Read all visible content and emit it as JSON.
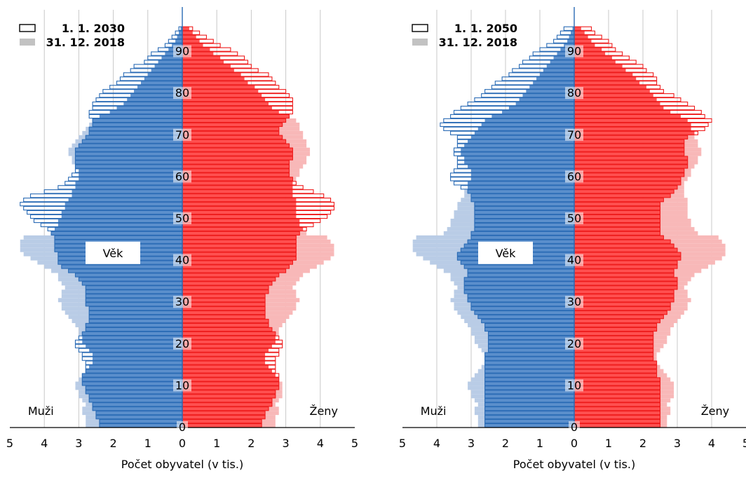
{
  "chart_data": [
    {
      "type": "bar",
      "orientation": "horizontal-pyramid",
      "xlabel": "Počet obyvatel (v tis.)",
      "xticks": [
        "5",
        "4",
        "3",
        "2",
        "1",
        "0",
        "1",
        "2",
        "3",
        "4",
        "5"
      ],
      "xlim": [
        -5,
        5
      ],
      "ylim": [
        0,
        100
      ],
      "yticks": [
        "0",
        "10",
        "20",
        "30",
        "40",
        "50",
        "60",
        "70",
        "80",
        "90"
      ],
      "age_label": "Věk",
      "left_label": "Muži",
      "right_label": "Ženy",
      "legend_position": "top-left",
      "legend": [
        {
          "name": "1. 1. 2030",
          "style": "outline"
        },
        {
          "name": "31. 12. 2018",
          "style": "filled-gray"
        }
      ],
      "colors": {
        "male_outline": "#2a6bb5",
        "female_outline": "#ee1c1c",
        "male_fill_projection": "#5b8fcc",
        "female_fill_projection": "#ff5050",
        "male_2018": "#b9cce6",
        "female_2018": "#f8b8b8",
        "grid": "#c8c8c8"
      },
      "ages": [
        0,
        1,
        2,
        3,
        4,
        5,
        6,
        7,
        8,
        9,
        10,
        11,
        12,
        13,
        14,
        15,
        16,
        17,
        18,
        19,
        20,
        21,
        22,
        23,
        24,
        25,
        26,
        27,
        28,
        29,
        30,
        31,
        32,
        33,
        34,
        35,
        36,
        37,
        38,
        39,
        40,
        41,
        42,
        43,
        44,
        45,
        46,
        47,
        48,
        49,
        50,
        51,
        52,
        53,
        54,
        55,
        56,
        57,
        58,
        59,
        60,
        61,
        62,
        63,
        64,
        65,
        66,
        67,
        68,
        69,
        70,
        71,
        72,
        73,
        74,
        75,
        76,
        77,
        78,
        79,
        80,
        81,
        82,
        83,
        84,
        85,
        86,
        87,
        88,
        89,
        90,
        91,
        92,
        93,
        94,
        95
      ],
      "series": [
        {
          "name": "1. 1. 2030",
          "group": "Muži",
          "values": [
            2.4,
            2.4,
            2.5,
            2.5,
            2.6,
            2.6,
            2.7,
            2.7,
            2.8,
            2.8,
            2.9,
            2.9,
            2.9,
            2.8,
            2.8,
            2.8,
            2.9,
            2.9,
            3.0,
            3.1,
            3.1,
            3.0,
            2.9,
            2.8,
            2.8,
            2.7,
            2.7,
            2.7,
            2.7,
            2.8,
            2.8,
            2.8,
            2.8,
            2.8,
            2.9,
            3.0,
            3.1,
            3.3,
            3.5,
            3.6,
            3.6,
            3.6,
            3.7,
            3.7,
            3.7,
            3.7,
            3.8,
            3.9,
            4.1,
            4.3,
            4.4,
            4.5,
            4.6,
            4.7,
            4.6,
            4.4,
            4.0,
            3.6,
            3.4,
            3.3,
            3.2,
            3.1,
            3.1,
            3.1,
            3.1,
            3.1,
            3.1,
            3.0,
            2.9,
            2.8,
            2.7,
            2.7,
            2.6,
            2.6,
            2.7,
            2.7,
            2.6,
            2.6,
            2.5,
            2.4,
            2.3,
            2.1,
            1.9,
            1.8,
            1.7,
            1.5,
            1.4,
            1.1,
            1.0,
            0.9,
            0.7,
            0.5,
            0.4,
            0.3,
            0.2,
            0.1
          ]
        },
        {
          "name": "31. 12. 2018",
          "group": "Muži",
          "values": [
            2.8,
            2.8,
            2.8,
            2.9,
            2.9,
            2.8,
            2.9,
            3.0,
            3.0,
            3.1,
            3.1,
            3.0,
            2.9,
            2.8,
            2.7,
            2.6,
            2.6,
            2.6,
            2.7,
            2.8,
            2.9,
            2.9,
            3.0,
            3.0,
            3.1,
            3.2,
            3.3,
            3.4,
            3.5,
            3.5,
            3.6,
            3.5,
            3.5,
            3.4,
            3.5,
            3.6,
            3.6,
            3.8,
            4.0,
            4.2,
            4.4,
            4.6,
            4.7,
            4.7,
            4.7,
            4.6,
            3.8,
            3.7,
            3.6,
            3.6,
            3.5,
            3.5,
            3.4,
            3.4,
            3.3,
            3.2,
            3.2,
            3.1,
            3.1,
            3.0,
            3.0,
            3.0,
            3.1,
            3.2,
            3.2,
            3.3,
            3.3,
            3.2,
            3.1,
            3.0,
            2.9,
            2.8,
            2.7,
            2.6,
            2.4,
            2.1,
            1.9,
            1.7,
            1.6,
            1.5,
            1.4,
            1.3,
            1.2,
            1.1,
            1.0,
            0.9,
            0.8,
            0.7,
            0.6,
            0.5,
            0.4,
            0.3,
            0.2,
            0.15,
            0.1,
            0.05
          ]
        },
        {
          "name": "1. 1. 2030",
          "group": "Ženy",
          "values": [
            2.3,
            2.3,
            2.4,
            2.4,
            2.5,
            2.6,
            2.6,
            2.7,
            2.7,
            2.8,
            2.8,
            2.8,
            2.8,
            2.7,
            2.7,
            2.7,
            2.7,
            2.8,
            2.8,
            2.9,
            2.9,
            2.8,
            2.7,
            2.6,
            2.5,
            2.5,
            2.4,
            2.4,
            2.4,
            2.4,
            2.4,
            2.4,
            2.5,
            2.5,
            2.6,
            2.7,
            2.8,
            3.0,
            3.1,
            3.2,
            3.3,
            3.3,
            3.3,
            3.3,
            3.3,
            3.3,
            3.4,
            3.6,
            3.8,
            4.0,
            4.2,
            4.3,
            4.4,
            4.4,
            4.3,
            4.1,
            3.8,
            3.5,
            3.3,
            3.2,
            3.1,
            3.1,
            3.1,
            3.1,
            3.2,
            3.2,
            3.2,
            3.1,
            3.0,
            2.9,
            2.8,
            2.8,
            2.9,
            3.0,
            3.1,
            3.2,
            3.2,
            3.2,
            3.2,
            3.1,
            3.0,
            2.8,
            2.7,
            2.6,
            2.5,
            2.2,
            2.0,
            1.9,
            1.8,
            1.6,
            1.4,
            1.1,
            0.9,
            0.7,
            0.5,
            0.3
          ]
        },
        {
          "name": "31. 12. 2018",
          "group": "Ženy",
          "values": [
            2.7,
            2.7,
            2.7,
            2.8,
            2.8,
            2.7,
            2.8,
            2.9,
            2.9,
            2.9,
            2.9,
            2.8,
            2.7,
            2.6,
            2.5,
            2.4,
            2.4,
            2.4,
            2.5,
            2.6,
            2.7,
            2.7,
            2.8,
            2.8,
            2.9,
            3.0,
            3.1,
            3.2,
            3.3,
            3.3,
            3.4,
            3.3,
            3.3,
            3.2,
            3.3,
            3.4,
            3.5,
            3.7,
            3.9,
            4.1,
            4.3,
            4.4,
            4.4,
            4.4,
            4.3,
            4.2,
            3.6,
            3.5,
            3.4,
            3.4,
            3.3,
            3.3,
            3.3,
            3.3,
            3.3,
            3.2,
            3.2,
            3.2,
            3.2,
            3.3,
            3.4,
            3.4,
            3.5,
            3.6,
            3.6,
            3.7,
            3.7,
            3.6,
            3.6,
            3.5,
            3.5,
            3.4,
            3.4,
            3.3,
            3.1,
            2.8,
            2.6,
            2.5,
            2.4,
            2.3,
            2.2,
            2.1,
            1.9,
            1.8,
            1.7,
            1.5,
            1.4,
            1.2,
            1.1,
            0.9,
            0.8,
            0.6,
            0.5,
            0.4,
            0.3,
            0.2
          ]
        }
      ]
    },
    {
      "type": "bar",
      "orientation": "horizontal-pyramid",
      "xlabel": "Počet obyvatel (v tis.)",
      "xticks": [
        "5",
        "4",
        "3",
        "2",
        "1",
        "0",
        "1",
        "2",
        "3",
        "4",
        "5"
      ],
      "xlim": [
        -5,
        5
      ],
      "ylim": [
        0,
        100
      ],
      "yticks": [
        "0",
        "10",
        "20",
        "30",
        "40",
        "50",
        "60",
        "70",
        "80",
        "90"
      ],
      "age_label": "Věk",
      "left_label": "Muži",
      "right_label": "Ženy",
      "legend_position": "top-left",
      "legend": [
        {
          "name": "1. 1. 2050",
          "style": "outline"
        },
        {
          "name": "31. 12. 2018",
          "style": "filled-gray"
        }
      ],
      "colors": {
        "male_outline": "#2a6bb5",
        "female_outline": "#ee1c1c",
        "male_fill_projection": "#5b8fcc",
        "female_fill_projection": "#ff5050",
        "male_2018": "#b9cce6",
        "female_2018": "#f8b8b8",
        "grid": "#c8c8c8"
      },
      "ages": [
        0,
        1,
        2,
        3,
        4,
        5,
        6,
        7,
        8,
        9,
        10,
        11,
        12,
        13,
        14,
        15,
        16,
        17,
        18,
        19,
        20,
        21,
        22,
        23,
        24,
        25,
        26,
        27,
        28,
        29,
        30,
        31,
        32,
        33,
        34,
        35,
        36,
        37,
        38,
        39,
        40,
        41,
        42,
        43,
        44,
        45,
        46,
        47,
        48,
        49,
        50,
        51,
        52,
        53,
        54,
        55,
        56,
        57,
        58,
        59,
        60,
        61,
        62,
        63,
        64,
        65,
        66,
        67,
        68,
        69,
        70,
        71,
        72,
        73,
        74,
        75,
        76,
        77,
        78,
        79,
        80,
        81,
        82,
        83,
        84,
        85,
        86,
        87,
        88,
        89,
        90,
        91,
        92,
        93,
        94,
        95
      ],
      "series": [
        {
          "name": "1. 1. 2050",
          "group": "Muži",
          "values": [
            2.6,
            2.6,
            2.6,
            2.6,
            2.6,
            2.6,
            2.6,
            2.6,
            2.6,
            2.6,
            2.6,
            2.6,
            2.6,
            2.6,
            2.6,
            2.6,
            2.6,
            2.6,
            2.5,
            2.5,
            2.5,
            2.5,
            2.5,
            2.6,
            2.6,
            2.7,
            2.8,
            2.9,
            3.0,
            3.0,
            3.1,
            3.1,
            3.2,
            3.2,
            3.2,
            3.2,
            3.1,
            3.1,
            3.2,
            3.3,
            3.4,
            3.4,
            3.3,
            3.2,
            3.1,
            3.0,
            3.0,
            2.9,
            2.9,
            2.9,
            2.9,
            2.9,
            2.9,
            2.9,
            3.0,
            3.0,
            3.1,
            3.3,
            3.5,
            3.6,
            3.6,
            3.5,
            3.4,
            3.4,
            3.4,
            3.5,
            3.5,
            3.4,
            3.4,
            3.4,
            3.6,
            3.8,
            3.9,
            3.8,
            3.6,
            3.5,
            3.3,
            3.1,
            2.9,
            2.7,
            2.6,
            2.4,
            2.3,
            2.1,
            1.9,
            1.8,
            1.6,
            1.5,
            1.3,
            1.2,
            1.0,
            0.8,
            0.6,
            0.5,
            0.4,
            0.3
          ]
        },
        {
          "name": "31. 12. 2018",
          "group": "Muži",
          "values": [
            2.8,
            2.8,
            2.8,
            2.9,
            2.9,
            2.8,
            2.9,
            3.0,
            3.0,
            3.1,
            3.1,
            3.0,
            2.9,
            2.8,
            2.7,
            2.6,
            2.6,
            2.6,
            2.7,
            2.8,
            2.9,
            2.9,
            3.0,
            3.0,
            3.1,
            3.2,
            3.3,
            3.4,
            3.5,
            3.5,
            3.6,
            3.5,
            3.5,
            3.4,
            3.5,
            3.6,
            3.6,
            3.8,
            4.0,
            4.2,
            4.4,
            4.6,
            4.7,
            4.7,
            4.7,
            4.6,
            3.8,
            3.7,
            3.6,
            3.6,
            3.5,
            3.5,
            3.4,
            3.4,
            3.3,
            3.2,
            3.2,
            3.1,
            3.1,
            3.0,
            3.0,
            3.0,
            3.1,
            3.2,
            3.2,
            3.3,
            3.3,
            3.2,
            3.1,
            3.0,
            2.9,
            2.8,
            2.7,
            2.6,
            2.4,
            2.1,
            1.9,
            1.7,
            1.6,
            1.5,
            1.4,
            1.3,
            1.2,
            1.1,
            1.0,
            0.9,
            0.8,
            0.7,
            0.6,
            0.5,
            0.4,
            0.3,
            0.2,
            0.15,
            0.1,
            0.05
          ]
        },
        {
          "name": "1. 1. 2050",
          "group": "Ženy",
          "values": [
            2.5,
            2.5,
            2.5,
            2.5,
            2.5,
            2.5,
            2.5,
            2.5,
            2.5,
            2.5,
            2.5,
            2.5,
            2.4,
            2.4,
            2.4,
            2.4,
            2.3,
            2.3,
            2.3,
            2.3,
            2.3,
            2.3,
            2.3,
            2.4,
            2.4,
            2.5,
            2.6,
            2.7,
            2.8,
            2.8,
            2.9,
            2.9,
            2.9,
            3.0,
            3.0,
            3.0,
            2.9,
            2.9,
            3.0,
            3.0,
            3.1,
            3.1,
            3.0,
            2.9,
            2.8,
            2.6,
            2.5,
            2.5,
            2.5,
            2.5,
            2.5,
            2.5,
            2.5,
            2.5,
            2.6,
            2.8,
            2.9,
            3.0,
            3.1,
            3.1,
            3.2,
            3.2,
            3.3,
            3.3,
            3.3,
            3.2,
            3.2,
            3.2,
            3.2,
            3.3,
            3.6,
            3.8,
            3.9,
            4.0,
            3.8,
            3.7,
            3.5,
            3.3,
            3.1,
            2.9,
            2.6,
            2.5,
            2.4,
            2.4,
            2.3,
            2.1,
            2.0,
            1.8,
            1.6,
            1.4,
            1.2,
            1.1,
            1.0,
            0.8,
            0.6,
            0.5
          ]
        },
        {
          "name": "31. 12. 2018",
          "group": "Ženy",
          "values": [
            2.7,
            2.7,
            2.7,
            2.8,
            2.8,
            2.7,
            2.8,
            2.9,
            2.9,
            2.9,
            2.9,
            2.8,
            2.7,
            2.6,
            2.5,
            2.4,
            2.4,
            2.4,
            2.5,
            2.6,
            2.7,
            2.7,
            2.8,
            2.8,
            2.9,
            3.0,
            3.1,
            3.2,
            3.3,
            3.3,
            3.4,
            3.3,
            3.3,
            3.2,
            3.3,
            3.4,
            3.5,
            3.7,
            3.9,
            4.1,
            4.3,
            4.4,
            4.4,
            4.4,
            4.3,
            4.2,
            3.6,
            3.5,
            3.4,
            3.4,
            3.3,
            3.3,
            3.3,
            3.3,
            3.3,
            3.2,
            3.2,
            3.2,
            3.2,
            3.3,
            3.4,
            3.4,
            3.5,
            3.6,
            3.6,
            3.7,
            3.7,
            3.6,
            3.6,
            3.5,
            3.5,
            3.4,
            3.4,
            3.3,
            3.1,
            2.8,
            2.6,
            2.5,
            2.4,
            2.3,
            2.2,
            2.1,
            1.9,
            1.8,
            1.7,
            1.5,
            1.4,
            1.2,
            1.1,
            0.9,
            0.8,
            0.6,
            0.5,
            0.4,
            0.3,
            0.2
          ]
        }
      ]
    }
  ]
}
